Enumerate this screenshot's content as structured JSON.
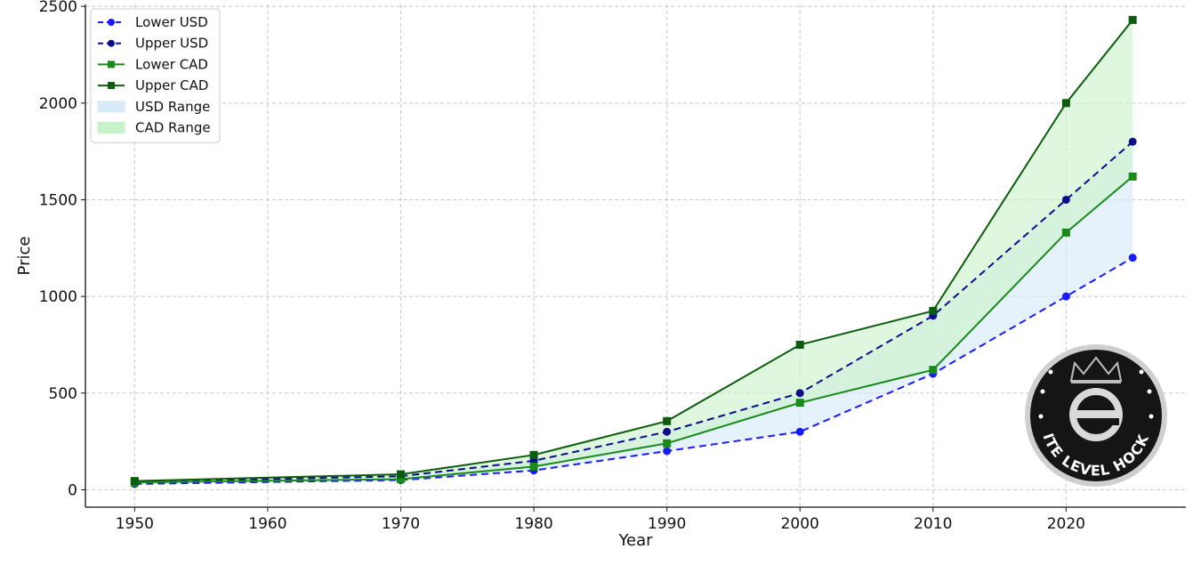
{
  "chart_data": {
    "type": "line",
    "title": "",
    "xlabel": "Year",
    "ylabel": "Price",
    "xlim": [
      1946.3,
      2029.0
    ],
    "ylim": [
      -90,
      2510
    ],
    "x_ticks": [
      1950,
      1960,
      1970,
      1980,
      1990,
      2000,
      2010,
      2020
    ],
    "y_ticks": [
      0,
      500,
      1000,
      1500,
      2000,
      2500
    ],
    "grid": true,
    "legend_position": "top-left",
    "x": [
      1950,
      1970,
      1980,
      1990,
      2000,
      2010,
      2020,
      2025
    ],
    "series": [
      {
        "name": "Lower USD",
        "values": [
          30,
          50,
          100,
          200,
          300,
          600,
          1000,
          1200
        ],
        "color": "#1a1aff",
        "linestyle": "dashed",
        "marker": "circle"
      },
      {
        "name": "Upper USD",
        "values": [
          40,
          70,
          150,
          300,
          500,
          900,
          1500,
          1800
        ],
        "color": "#0d0d8c",
        "linestyle": "dashed",
        "marker": "circle"
      },
      {
        "name": "Lower CAD",
        "values": [
          38,
          55,
          120,
          240,
          450,
          620,
          1330,
          1620
        ],
        "color": "#1a8a1a",
        "linestyle": "solid",
        "marker": "square"
      },
      {
        "name": "Upper CAD",
        "values": [
          45,
          80,
          180,
          355,
          750,
          925,
          2000,
          2430
        ],
        "color": "#0d5c0d",
        "linestyle": "solid",
        "marker": "square"
      }
    ],
    "ranges": [
      {
        "name": "USD Range",
        "lower": "Lower USD",
        "upper": "Upper USD",
        "color": "#d6eaf8"
      },
      {
        "name": "CAD Range",
        "lower": "Lower CAD",
        "upper": "Upper CAD",
        "color": "#c8f2c8"
      }
    ]
  },
  "logo": {
    "text": "ELITE LEVEL HOCKEY",
    "icon": "elite-level-hockey-logo"
  }
}
